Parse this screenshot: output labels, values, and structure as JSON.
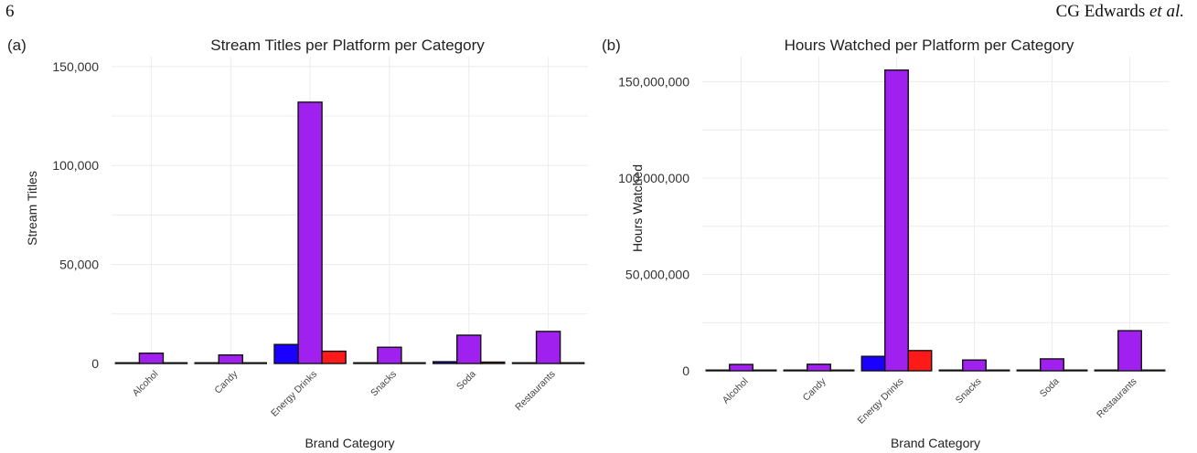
{
  "page": {
    "number": "6",
    "running_head": {
      "authors": "CG Edwards ",
      "etal": "et al."
    }
  },
  "chart_data": [
    {
      "type": "bar",
      "panel": "(a)",
      "title": "Stream Titles per Platform per Category",
      "xlabel": "Brand Category",
      "ylabel": "Stream Titles",
      "categories": [
        "Alcohol",
        "Candy",
        "Energy Drinks",
        "Snacks",
        "Soda",
        "Restaurants"
      ],
      "series": [
        {
          "color": "#1a00ff",
          "values": [
            200,
            100,
            9600,
            300,
            900,
            200
          ]
        },
        {
          "color": "#a020f0",
          "values": [
            5200,
            4300,
            132000,
            8200,
            14300,
            16200
          ]
        },
        {
          "color": "#ff1a1a",
          "values": [
            100,
            50,
            6200,
            100,
            700,
            50
          ]
        }
      ],
      "ylim": [
        0,
        155000
      ],
      "yticks": [
        0,
        50000,
        100000,
        150000
      ],
      "ytick_labels": [
        "0",
        "50,000",
        "100,000",
        "150,000"
      ],
      "grid": true,
      "legend": "none"
    },
    {
      "type": "bar",
      "panel": "(b)",
      "title": "Hours Watched per Platform per Category",
      "xlabel": "Brand Category",
      "ylabel": "Hours Watched",
      "categories": [
        "Alcohol",
        "Candy",
        "Energy Drinks",
        "Snacks",
        "Soda",
        "Restaurants"
      ],
      "series": [
        {
          "color": "#1a00ff",
          "values": [
            100000,
            50000,
            7500000,
            300000,
            200000,
            50000
          ]
        },
        {
          "color": "#a020f0",
          "values": [
            3300000,
            3400000,
            156000000,
            5600000,
            6200000,
            20800000
          ]
        },
        {
          "color": "#ff1a1a",
          "values": [
            100000,
            50000,
            10500000,
            200000,
            100000,
            300000
          ]
        }
      ],
      "ylim": [
        0,
        163000000
      ],
      "yticks": [
        0,
        50000000,
        100000000,
        150000000
      ],
      "ytick_labels": [
        "0",
        "50,000,000",
        "100,000,000",
        "150,000,000"
      ],
      "grid": true,
      "legend": "none"
    }
  ]
}
